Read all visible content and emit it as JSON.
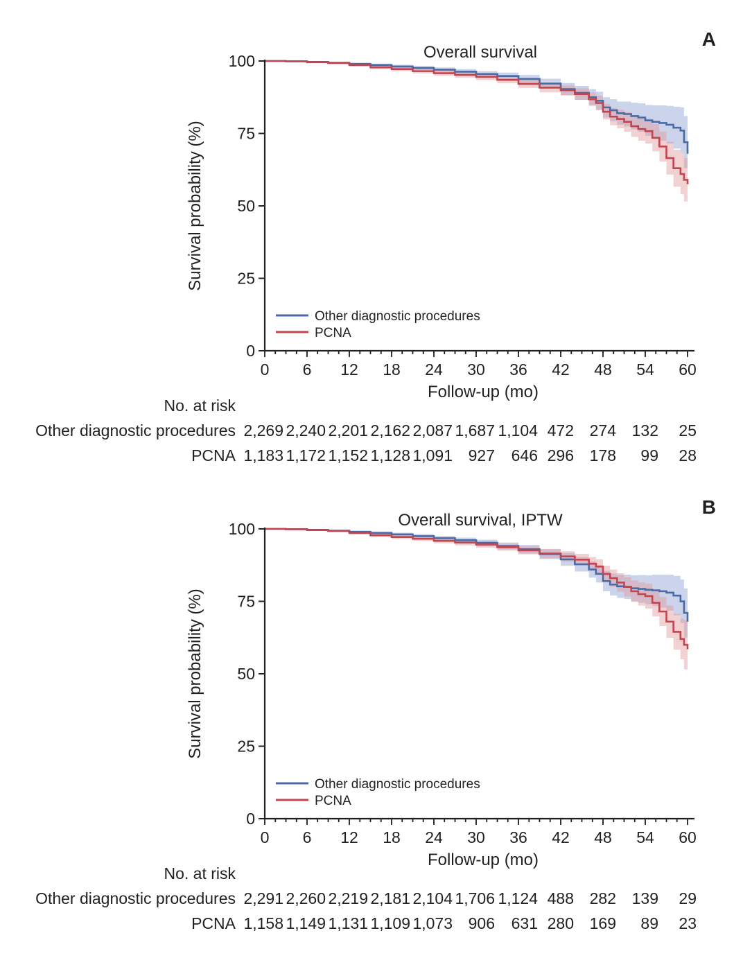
{
  "colors": {
    "other": "#4a6aa5",
    "pcna": "#c1444f",
    "other_band": "#8fa0d2",
    "pcna_band": "#e39a9c",
    "axis": "#231f20"
  },
  "chart_data": [
    {
      "panel": "A",
      "type": "line",
      "title": "Overall survival",
      "xlabel": "Follow-up (mo)",
      "ylabel": "Survival probability (%)",
      "xlim": [
        0,
        60
      ],
      "ylim": [
        0,
        100
      ],
      "xticks": [
        "0",
        "6",
        "12",
        "18",
        "24",
        "30",
        "36",
        "42",
        "48",
        "54",
        "60"
      ],
      "yticks": [
        "0",
        "25",
        "50",
        "75",
        "100"
      ],
      "legend_position": "bottom-left",
      "series": [
        {
          "name": "Other diagnostic procedures",
          "key": "other",
          "x": [
            0,
            3,
            6,
            9,
            12,
            15,
            18,
            21,
            24,
            27,
            30,
            33,
            36,
            39,
            42,
            44,
            46,
            47,
            48,
            49,
            50,
            51,
            52,
            53,
            54,
            55,
            56,
            57,
            58,
            59,
            59.5,
            60
          ],
          "y": [
            100,
            99.9,
            99.7,
            99.4,
            99,
            98.6,
            98.1,
            97.6,
            97,
            96.3,
            95.5,
            94.8,
            93.8,
            92.2,
            90.3,
            89,
            87.5,
            86.3,
            84,
            83,
            82,
            81.7,
            81,
            80.5,
            79.5,
            79,
            78.6,
            78,
            77,
            76,
            72,
            68
          ],
          "lower": [
            100,
            99.8,
            99.5,
            99.1,
            98.6,
            98.1,
            97.5,
            96.9,
            96.2,
            95.4,
            94.5,
            93.6,
            92.4,
            90.5,
            88.2,
            86.6,
            84.7,
            83.2,
            80.5,
            79.2,
            78,
            77.4,
            76.4,
            75.6,
            74.2,
            73.3,
            72.5,
            71.5,
            69.8,
            68,
            63,
            58.5
          ],
          "upper": [
            100,
            100,
            99.9,
            99.7,
            99.4,
            99.1,
            98.7,
            98.3,
            97.8,
            97.2,
            96.5,
            96,
            95.2,
            93.9,
            92.4,
            91.4,
            90.3,
            89.4,
            87.5,
            86.8,
            86,
            86,
            85.6,
            85.4,
            84.8,
            84.7,
            84.7,
            84.5,
            84.2,
            84,
            81,
            77.5
          ]
        },
        {
          "name": "PCNA",
          "key": "pcna",
          "x": [
            0,
            3,
            6,
            9,
            12,
            15,
            18,
            21,
            24,
            27,
            30,
            33,
            36,
            39,
            42,
            44,
            46,
            47,
            48,
            49,
            50,
            51,
            52,
            53,
            54,
            55,
            56,
            57,
            58,
            59,
            59.5,
            60
          ],
          "y": [
            100,
            99.9,
            99.6,
            99.3,
            98.6,
            97.8,
            97.2,
            96.5,
            95.8,
            95.2,
            94.5,
            93.5,
            92.1,
            90.8,
            89.9,
            88.6,
            86.8,
            85.5,
            82.5,
            80.8,
            80,
            79,
            77.5,
            76.5,
            75.8,
            73.5,
            70.5,
            66.5,
            63,
            61,
            59,
            57.5
          ],
          "lower": [
            100,
            99.7,
            99.3,
            98.9,
            98.1,
            97.2,
            96.5,
            95.7,
            94.9,
            94.2,
            93.4,
            92.3,
            90.7,
            89.2,
            88.1,
            86.6,
            84.5,
            83,
            79.8,
            77.8,
            76.8,
            75.6,
            73.8,
            72.5,
            71.5,
            68.8,
            65.3,
            60.8,
            56.6,
            54,
            51.5,
            49.5
          ],
          "upper": [
            100,
            100,
            99.9,
            99.7,
            99.1,
            98.4,
            97.9,
            97.3,
            96.7,
            96.2,
            95.6,
            94.7,
            93.5,
            92.4,
            91.7,
            90.6,
            89.1,
            88,
            85.2,
            83.8,
            83.2,
            82.4,
            81.2,
            80.5,
            80.1,
            78.2,
            75.7,
            72.2,
            69.4,
            68,
            66.5,
            65.5
          ]
        }
      ],
      "risk_table": {
        "header": "No. at risk",
        "rows": [
          {
            "label": "Other diagnostic procedures",
            "values": [
              "2,269",
              "2,240",
              "2,201",
              "2,162",
              "2,087",
              "1,687",
              "1,104",
              "472",
              "274",
              "132",
              "25"
            ]
          },
          {
            "label": "PCNA",
            "values": [
              "1,183",
              "1,172",
              "1,152",
              "1,128",
              "1,091",
              "927",
              "646",
              "296",
              "178",
              "99",
              "28"
            ]
          }
        ]
      }
    },
    {
      "panel": "B",
      "type": "line",
      "title": "Overall survival, IPTW",
      "xlabel": "Follow-up (mo)",
      "ylabel": "Survival probability (%)",
      "xlim": [
        0,
        60
      ],
      "ylim": [
        0,
        100
      ],
      "xticks": [
        "0",
        "6",
        "12",
        "18",
        "24",
        "30",
        "36",
        "42",
        "48",
        "54",
        "60"
      ],
      "yticks": [
        "0",
        "25",
        "50",
        "75",
        "100"
      ],
      "legend_position": "bottom-left",
      "series": [
        {
          "name": "Other diagnostic procedures",
          "key": "other",
          "x": [
            0,
            3,
            6,
            9,
            12,
            15,
            18,
            21,
            24,
            27,
            30,
            33,
            36,
            39,
            42,
            44,
            46,
            47,
            48,
            49,
            50,
            51,
            52,
            53,
            54,
            55,
            56,
            57,
            58,
            59,
            59.5,
            60
          ],
          "y": [
            100,
            99.9,
            99.7,
            99.4,
            99,
            98.6,
            98.1,
            97.5,
            96.8,
            96.1,
            95.2,
            94.1,
            93,
            91.3,
            89.5,
            87.8,
            86,
            84.5,
            82,
            80.8,
            80.2,
            80,
            79.5,
            79.3,
            79,
            78.8,
            78.5,
            78,
            77,
            75,
            71,
            68
          ],
          "lower": [
            100,
            99.8,
            99.5,
            99.1,
            98.6,
            98.1,
            97.5,
            96.8,
            96,
            95.2,
            94.1,
            92.9,
            91.5,
            89.6,
            87.3,
            85.3,
            83.2,
            81.5,
            78.5,
            77,
            76.2,
            75.8,
            75,
            74.5,
            74,
            73.4,
            72.8,
            71.8,
            70.2,
            67.5,
            62.5,
            59
          ],
          "upper": [
            100,
            100,
            99.9,
            99.7,
            99.4,
            99.1,
            98.7,
            98.2,
            97.6,
            97,
            96.3,
            95.3,
            94.5,
            93,
            91.7,
            90.3,
            88.8,
            87.5,
            85.5,
            84.6,
            84.2,
            84.2,
            84,
            84.1,
            84,
            84.2,
            84.2,
            84.2,
            83.8,
            82.5,
            79.5,
            77
          ]
        },
        {
          "name": "PCNA",
          "key": "pcna",
          "x": [
            0,
            3,
            6,
            9,
            12,
            15,
            18,
            21,
            24,
            27,
            30,
            33,
            36,
            39,
            42,
            44,
            46,
            47,
            48,
            49,
            50,
            51,
            52,
            53,
            54,
            55,
            56,
            57,
            58,
            59,
            59.5,
            60
          ],
          "y": [
            100,
            99.9,
            99.6,
            99.3,
            98.6,
            97.8,
            97.2,
            96.6,
            95.9,
            95.3,
            94.6,
            93.7,
            92.6,
            91.5,
            90.5,
            89.4,
            88,
            87,
            84.5,
            83,
            81.5,
            80,
            78.5,
            77.5,
            76.8,
            74.5,
            71.5,
            68,
            64.5,
            62,
            60,
            58.5
          ],
          "lower": [
            100,
            99.7,
            99.3,
            98.9,
            98.1,
            97.2,
            96.5,
            95.8,
            95,
            94.3,
            93.5,
            92.5,
            91.2,
            89.9,
            88.7,
            87.4,
            85.7,
            84.5,
            81.7,
            80,
            78.3,
            76.6,
            74.8,
            73.5,
            72.5,
            69.8,
            66.5,
            62.4,
            58.3,
            55,
            51.5,
            48.5
          ],
          "upper": [
            100,
            100,
            99.9,
            99.7,
            99.1,
            98.4,
            97.9,
            97.4,
            96.8,
            96.3,
            95.7,
            94.9,
            94,
            93.1,
            92.3,
            91.4,
            90.3,
            89.5,
            87.3,
            86,
            84.7,
            83.4,
            82.2,
            81.5,
            81.1,
            79.2,
            76.5,
            73.6,
            70.7,
            69,
            68.5,
            68.5
          ]
        }
      ],
      "risk_table": {
        "header": "No. at risk",
        "rows": [
          {
            "label": "Other diagnostic procedures",
            "values": [
              "2,291",
              "2,260",
              "2,219",
              "2,181",
              "2,104",
              "1,706",
              "1,124",
              "488",
              "282",
              "139",
              "29"
            ]
          },
          {
            "label": "PCNA",
            "values": [
              "1,158",
              "1,149",
              "1,131",
              "1,109",
              "1,073",
              "906",
              "631",
              "280",
              "169",
              "89",
              "23"
            ]
          }
        ]
      }
    }
  ]
}
